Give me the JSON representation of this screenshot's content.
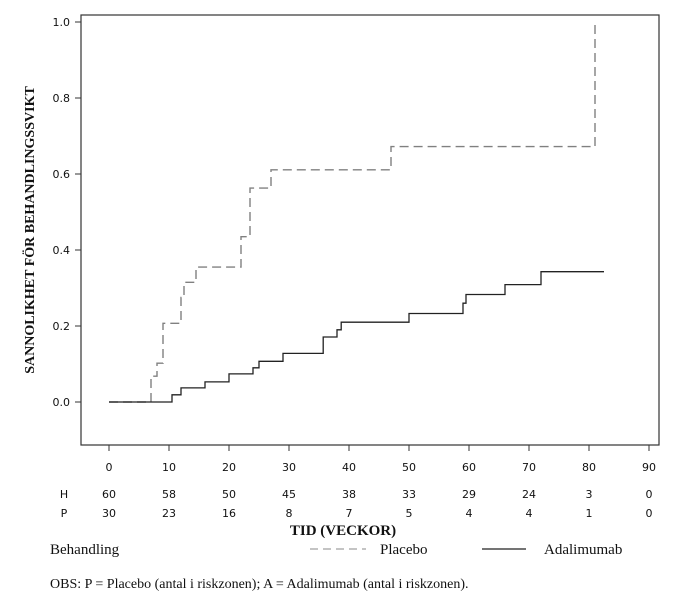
{
  "chart_data": {
    "type": "line",
    "title": "",
    "xlabel": "TID (VECKOR)",
    "ylabel": "SANNOLIKHET FÖR BEHANDLINGSSVIKT",
    "xlim": [
      -5,
      92
    ],
    "ylim": [
      -0.12,
      1.02
    ],
    "xticks": [
      0,
      10,
      20,
      30,
      40,
      50,
      60,
      70,
      80,
      90
    ],
    "yticks": [
      "0.0",
      "0.2",
      "0.4",
      "0.6",
      "0.8",
      "1.0"
    ],
    "ytick_values": [
      0.0,
      0.2,
      0.4,
      0.6,
      0.8,
      1.0
    ],
    "grid": false,
    "step": true,
    "series": [
      {
        "name": "Placebo",
        "style": "dashed",
        "color": "#808080",
        "points": [
          [
            0,
            0.0
          ],
          [
            7,
            0.0
          ],
          [
            7,
            0.068
          ],
          [
            8,
            0.068
          ],
          [
            8,
            0.102
          ],
          [
            9,
            0.102
          ],
          [
            9,
            0.207
          ],
          [
            12,
            0.207
          ],
          [
            12,
            0.275
          ],
          [
            12.5,
            0.275
          ],
          [
            12.5,
            0.315
          ],
          [
            14.5,
            0.315
          ],
          [
            14.5,
            0.355
          ],
          [
            22,
            0.355
          ],
          [
            22,
            0.435
          ],
          [
            23.5,
            0.435
          ],
          [
            23.5,
            0.563
          ],
          [
            27,
            0.563
          ],
          [
            27,
            0.611
          ],
          [
            47,
            0.611
          ],
          [
            47,
            0.672
          ],
          [
            81,
            0.672
          ],
          [
            81,
            1.0
          ]
        ]
      },
      {
        "name": "Adalimumab",
        "style": "solid",
        "color": "#222222",
        "points": [
          [
            0,
            0.0
          ],
          [
            10.5,
            0.0
          ],
          [
            10.5,
            0.019
          ],
          [
            12,
            0.019
          ],
          [
            12,
            0.037
          ],
          [
            16,
            0.037
          ],
          [
            16,
            0.053
          ],
          [
            20,
            0.053
          ],
          [
            20,
            0.074
          ],
          [
            24,
            0.074
          ],
          [
            24,
            0.09
          ],
          [
            25,
            0.09
          ],
          [
            25,
            0.107
          ],
          [
            29,
            0.107
          ],
          [
            29,
            0.128
          ],
          [
            35.7,
            0.128
          ],
          [
            35.7,
            0.171
          ],
          [
            38,
            0.171
          ],
          [
            38,
            0.19
          ],
          [
            38.7,
            0.19
          ],
          [
            38.7,
            0.21
          ],
          [
            50,
            0.21
          ],
          [
            50,
            0.233
          ],
          [
            59,
            0.233
          ],
          [
            59,
            0.26
          ],
          [
            59.5,
            0.26
          ],
          [
            59.5,
            0.283
          ],
          [
            66,
            0.283
          ],
          [
            66,
            0.309
          ],
          [
            72,
            0.309
          ],
          [
            72,
            0.343
          ],
          [
            82.5,
            0.343
          ]
        ]
      }
    ],
    "risk_table": {
      "rows": [
        {
          "label": "H",
          "values": [
            "60",
            "58",
            "50",
            "45",
            "38",
            "33",
            "29",
            "24",
            "3",
            "0"
          ]
        },
        {
          "label": "P",
          "values": [
            "30",
            "23",
            "16",
            "8",
            "7",
            "5",
            "4",
            "4",
            "1",
            "0"
          ]
        }
      ]
    },
    "legend": {
      "title": "Behandling",
      "placement": "bottom",
      "entries": [
        {
          "label": "Placebo",
          "style": "dashed",
          "color": "#a0a0a0"
        },
        {
          "label": "Adalimumab",
          "style": "solid",
          "color": "#222222"
        }
      ]
    },
    "note": "OBS: P = Placebo (antal i riskzonen); A = Adalimumab (antal i riskzonen)."
  }
}
